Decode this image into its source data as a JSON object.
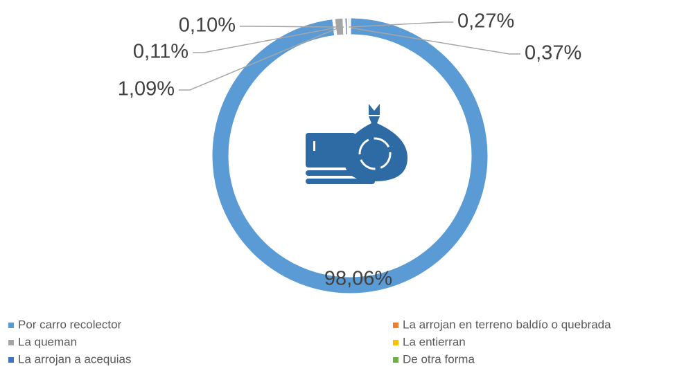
{
  "chart_data": {
    "type": "donut",
    "categories": [
      "Por carro recolector",
      "La arrojan en terreno baldío o quebrada",
      "La queman",
      "La entierran",
      "La arrojan a acequias",
      "De otra forma"
    ],
    "values": [
      98.06,
      0.11,
      1.09,
      0.1,
      0.37,
      0.27
    ],
    "value_labels": [
      "98,06%",
      "0,11%",
      "1,09%",
      "0,10%",
      "0,37%",
      "0,27%"
    ],
    "colors": [
      "#5b9bd5",
      "#ed7d31",
      "#a5a5a5",
      "#ffc000",
      "#4472c4",
      "#70ad47"
    ],
    "legend": "bottom"
  }
}
